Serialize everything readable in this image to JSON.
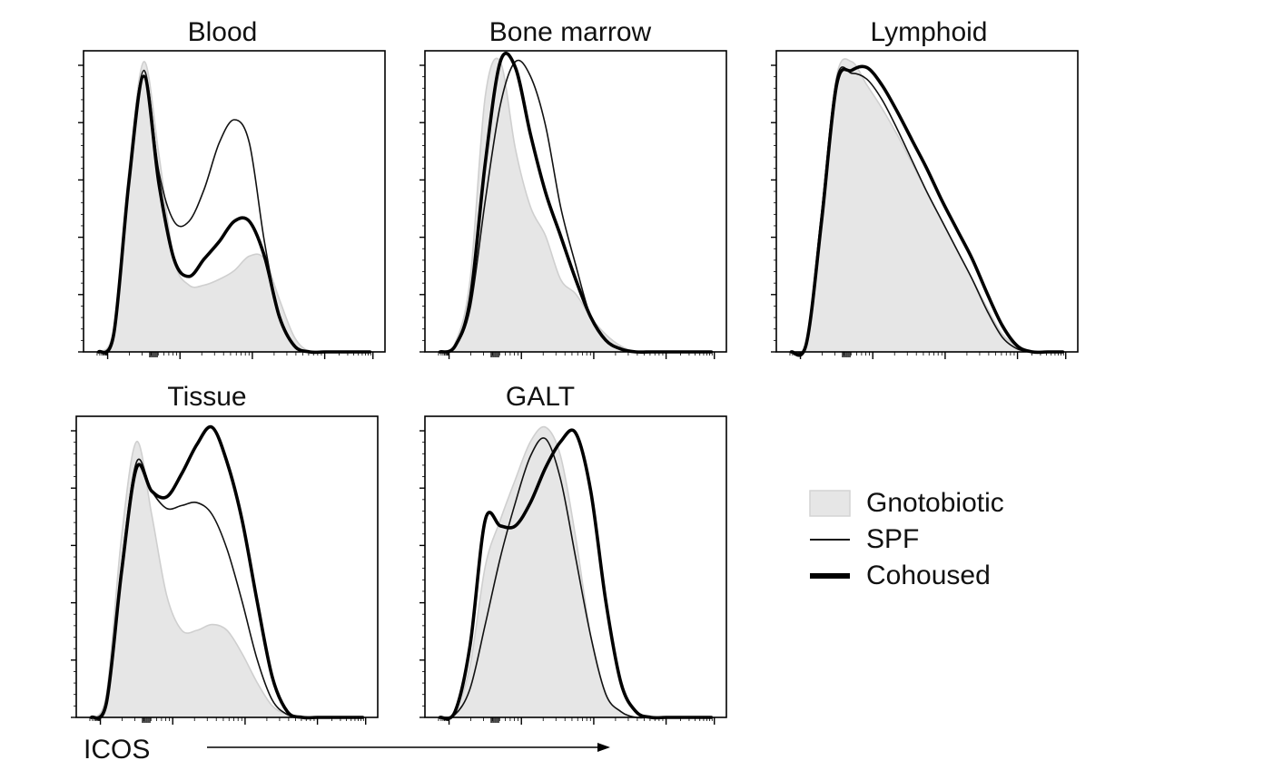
{
  "chart_data": {
    "type": "histogram-overlay",
    "x_axis_label": "ICOS",
    "x_scale": "log (biexponential), ticks unlabeled",
    "y_scale": "normalized to mode, ticks unlabeled",
    "x_range": [
      0,
      1
    ],
    "y_range": [
      0,
      100
    ],
    "legend": [
      {
        "name": "Gnotobiotic",
        "style": "filled-gray",
        "color": "#e6e6e6",
        "edge": "#cfcfcf"
      },
      {
        "name": "SPF",
        "style": "thin-line",
        "color": "#111111"
      },
      {
        "name": "Cohoused",
        "style": "thick-line",
        "color": "#000000"
      }
    ],
    "x": [
      0.05,
      0.1,
      0.15,
      0.2,
      0.25,
      0.3,
      0.35,
      0.4,
      0.45,
      0.5,
      0.55,
      0.6,
      0.65,
      0.7,
      0.75,
      0.8,
      0.85,
      0.9,
      0.95
    ],
    "panels": [
      {
        "title": "Blood",
        "series": [
          {
            "name": "Gnotobiotic",
            "values": [
              0,
              8,
              62,
              100,
              68,
              32,
              23,
              23,
              25,
              28,
              33,
              32,
              18,
              5,
              0,
              0,
              0,
              0,
              0
            ]
          },
          {
            "name": "SPF",
            "values": [
              0,
              7,
              60,
              97,
              62,
              45,
              45,
              56,
              72,
              80,
              72,
              38,
              12,
              2,
              0,
              0,
              0,
              0,
              0
            ]
          },
          {
            "name": "Cohoused",
            "values": [
              0,
              6,
              58,
              95,
              58,
              32,
              26,
              32,
              38,
              45,
              45,
              33,
              12,
              2,
              0,
              0,
              0,
              0,
              0
            ]
          }
        ]
      },
      {
        "title": "Bone marrow",
        "series": [
          {
            "name": "Gnotobiotic",
            "values": [
              0,
              3,
              25,
              88,
              100,
              70,
              50,
              40,
              25,
              20,
              12,
              6,
              2,
              0,
              0,
              0,
              0,
              0,
              0
            ]
          },
          {
            "name": "SPF",
            "values": [
              0,
              2,
              15,
              52,
              85,
              100,
              95,
              78,
              50,
              30,
              12,
              4,
              1,
              0,
              0,
              0,
              0,
              0,
              0
            ]
          },
          {
            "name": "Cohoused",
            "values": [
              0,
              2,
              18,
              65,
              100,
              98,
              75,
              55,
              40,
              25,
              12,
              4,
              1,
              0,
              0,
              0,
              0,
              0,
              0
            ]
          }
        ]
      },
      {
        "title": "Lymphoid",
        "series": [
          {
            "name": "Gnotobiotic",
            "values": [
              0,
              4,
              48,
              95,
              100,
              92,
              84,
              75,
              65,
              55,
              45,
              35,
              25,
              15,
              6,
              2,
              0,
              0,
              0
            ]
          },
          {
            "name": "SPF",
            "values": [
              0,
              4,
              48,
              94,
              96,
              94,
              87,
              77,
              66,
              55,
              45,
              35,
              25,
              14,
              5,
              1,
              0,
              0,
              0
            ]
          },
          {
            "name": "Cohoused",
            "values": [
              0,
              3,
              45,
              92,
              97,
              98,
              92,
              83,
              73,
              63,
              52,
              42,
              32,
              20,
              9,
              2,
              0,
              0,
              0
            ]
          }
        ]
      },
      {
        "title": "Tissue",
        "series": [
          {
            "name": "Gnotobiotic",
            "values": [
              0,
              8,
              62,
              95,
              70,
              42,
              30,
              30,
              32,
              30,
              22,
              12,
              4,
              1,
              0,
              0,
              0,
              0,
              0
            ]
          },
          {
            "name": "SPF",
            "values": [
              0,
              6,
              52,
              88,
              78,
              72,
              73,
              74,
              70,
              58,
              40,
              20,
              6,
              1,
              0,
              0,
              0,
              0,
              0
            ]
          },
          {
            "name": "Cohoused",
            "values": [
              0,
              5,
              50,
              86,
              78,
              76,
              84,
              94,
              100,
              88,
              68,
              40,
              14,
              2,
              0,
              0,
              0,
              0,
              0
            ]
          }
        ]
      },
      {
        "title": "GALT",
        "series": [
          {
            "name": "Gnotobiotic",
            "values": [
              0,
              2,
              18,
              52,
              68,
              82,
              95,
              100,
              90,
              62,
              28,
              8,
              2,
              0,
              0,
              0,
              0,
              0,
              0
            ]
          },
          {
            "name": "SPF",
            "values": [
              0,
              1,
              10,
              32,
              55,
              74,
              90,
              96,
              82,
              55,
              28,
              8,
              2,
              0,
              0,
              0,
              0,
              0,
              0
            ]
          },
          {
            "name": "Cohoused",
            "values": [
              0,
              2,
              25,
              68,
              66,
              66,
              74,
              86,
              95,
              98,
              78,
              40,
              12,
              2,
              0,
              0,
              0,
              0,
              0
            ]
          }
        ]
      }
    ]
  }
}
